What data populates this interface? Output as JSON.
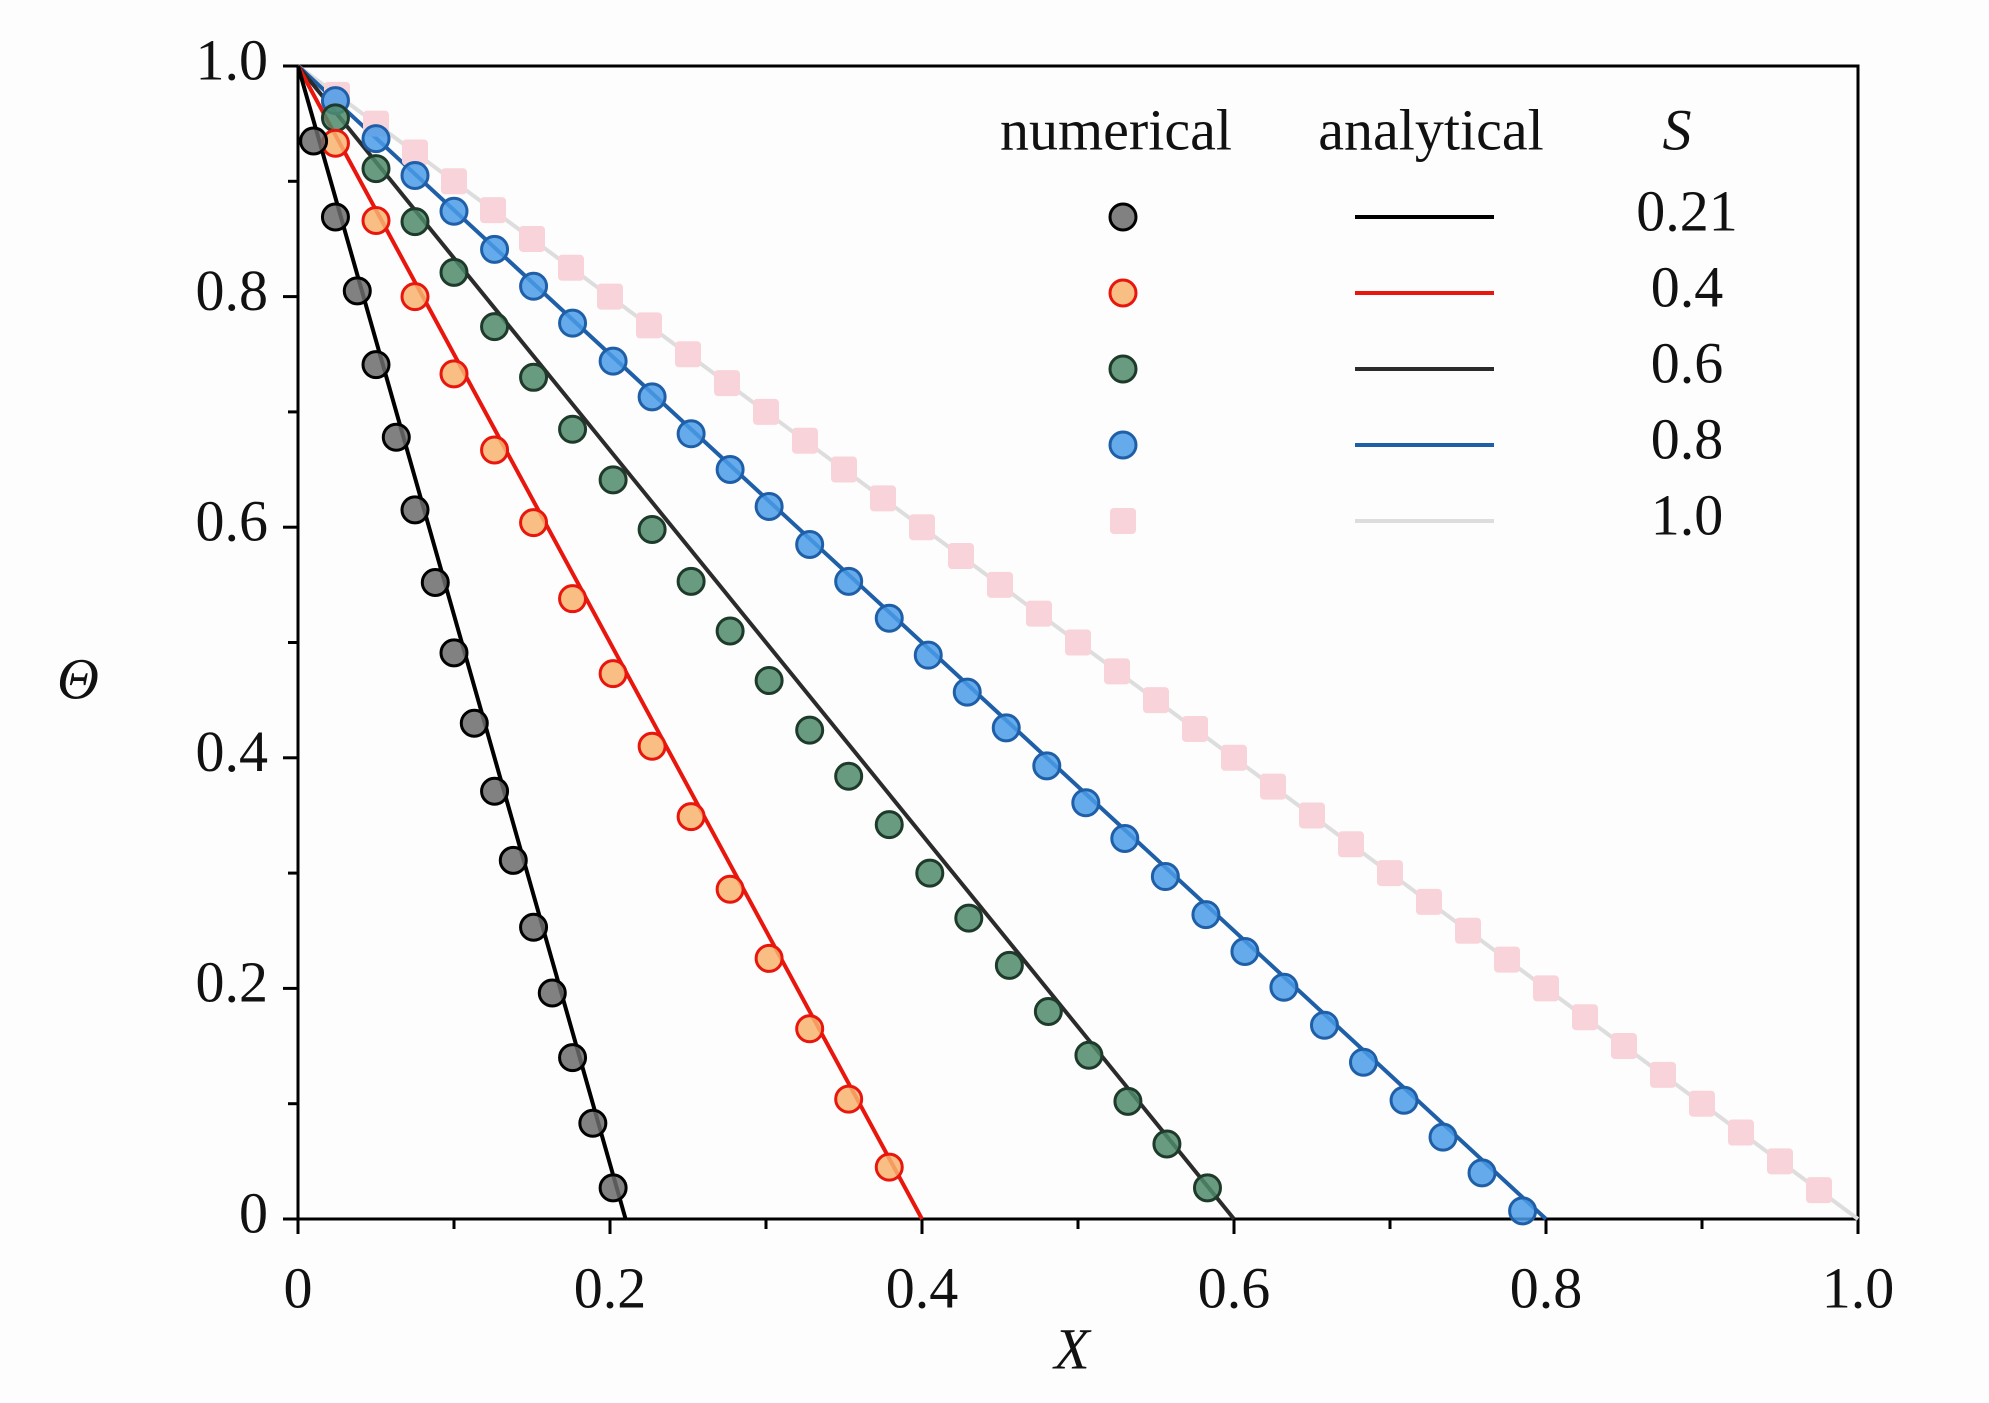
{
  "chart_data": {
    "type": "line",
    "xlabel": "X",
    "ylabel": "Θ",
    "xlim": [
      0,
      1
    ],
    "ylim": [
      0,
      1
    ],
    "xticks": [
      0,
      0.2,
      0.4,
      0.6,
      0.8,
      {
        "value": 1,
        "label": "1.0"
      }
    ],
    "yticks": [
      0,
      0.2,
      0.4,
      0.6,
      0.8,
      {
        "value": 1,
        "label": "1.0"
      }
    ],
    "xminorticks": [
      0.1,
      0.3,
      0.5,
      0.7,
      0.9
    ],
    "yminorticks": [
      0.1,
      0.3,
      0.5,
      0.7,
      0.9
    ],
    "legend_headers": [
      "numerical",
      "analytical",
      "S"
    ],
    "series": [
      {
        "name": "0.21",
        "color": "#000000",
        "marker_fill": "#6b6b6b",
        "marker_edge": "#000000",
        "marker_shape": "circle",
        "x": [
          0,
          0.21
        ],
        "values": [
          1,
          0
        ],
        "numerical_x": [
          0.01,
          0.024,
          0.038,
          0.05,
          0.063,
          0.075,
          0.088,
          0.1,
          0.113,
          0.126,
          0.138,
          0.151,
          0.163,
          0.176,
          0.189,
          0.202
        ],
        "numerical_values": [
          0.935,
          0.869,
          0.805,
          0.741,
          0.678,
          0.615,
          0.552,
          0.491,
          0.43,
          0.371,
          0.311,
          0.253,
          0.196,
          0.14,
          0.083,
          0.027
        ]
      },
      {
        "name": "0.4",
        "color": "#e8160c",
        "marker_fill": "#f7b36e",
        "marker_edge": "#e8160c",
        "marker_shape": "circle",
        "x": [
          0,
          0.4
        ],
        "values": [
          1,
          0
        ],
        "numerical_x": [
          0.024,
          0.05,
          0.075,
          0.1,
          0.126,
          0.151,
          0.176,
          0.202,
          0.227,
          0.252,
          0.277,
          0.302,
          0.328,
          0.353,
          0.379
        ],
        "numerical_values": [
          0.933,
          0.866,
          0.8,
          0.733,
          0.667,
          0.604,
          0.538,
          0.473,
          0.41,
          0.349,
          0.286,
          0.226,
          0.165,
          0.104,
          0.045
        ]
      },
      {
        "name": "0.6",
        "color": "#2b2b2b",
        "marker_fill": "#4e8a6a",
        "marker_edge": "#1e3a2a",
        "marker_shape": "circle",
        "x": [
          0,
          0.6
        ],
        "values": [
          1,
          0
        ],
        "numerical_x": [
          0.024,
          0.05,
          0.075,
          0.1,
          0.126,
          0.151,
          0.176,
          0.202,
          0.227,
          0.252,
          0.277,
          0.302,
          0.328,
          0.353,
          0.379,
          0.405,
          0.43,
          0.456,
          0.481,
          0.507,
          0.532,
          0.557,
          0.583
        ],
        "numerical_values": [
          0.955,
          0.911,
          0.865,
          0.821,
          0.774,
          0.73,
          0.685,
          0.641,
          0.598,
          0.553,
          0.51,
          0.467,
          0.424,
          0.384,
          0.342,
          0.3,
          0.261,
          0.22,
          0.18,
          0.142,
          0.102,
          0.065,
          0.027
        ]
      },
      {
        "name": "0.8",
        "color": "#1f5fa8",
        "marker_fill": "#4a9be8",
        "marker_edge": "#1f5fa8",
        "marker_shape": "circle",
        "x": [
          0,
          0.8
        ],
        "values": [
          1,
          0
        ],
        "numerical_x": [
          0.024,
          0.05,
          0.075,
          0.1,
          0.126,
          0.151,
          0.176,
          0.202,
          0.227,
          0.252,
          0.277,
          0.302,
          0.328,
          0.353,
          0.379,
          0.404,
          0.429,
          0.454,
          0.48,
          0.505,
          0.53,
          0.556,
          0.582,
          0.607,
          0.632,
          0.658,
          0.683,
          0.709,
          0.734,
          0.759,
          0.785
        ],
        "numerical_values": [
          0.97,
          0.937,
          0.905,
          0.874,
          0.841,
          0.809,
          0.777,
          0.744,
          0.713,
          0.681,
          0.65,
          0.618,
          0.585,
          0.553,
          0.521,
          0.489,
          0.457,
          0.426,
          0.393,
          0.361,
          0.33,
          0.297,
          0.264,
          0.232,
          0.201,
          0.168,
          0.136,
          0.103,
          0.071,
          0.04,
          0.007
        ]
      },
      {
        "name": "1.0",
        "color": "#dddddd",
        "marker_fill": "#f9d3da",
        "marker_edge": "none",
        "marker_shape": "square",
        "x": [
          0,
          1
        ],
        "values": [
          1,
          0
        ],
        "numerical_x": [
          0.025,
          0.05,
          0.075,
          0.1,
          0.125,
          0.15,
          0.175,
          0.2,
          0.225,
          0.25,
          0.275,
          0.3,
          0.325,
          0.35,
          0.375,
          0.4,
          0.425,
          0.45,
          0.475,
          0.5,
          0.525,
          0.55,
          0.575,
          0.6,
          0.625,
          0.65,
          0.675,
          0.7,
          0.725,
          0.75,
          0.775,
          0.8,
          0.825,
          0.85,
          0.875,
          0.9,
          0.925,
          0.95,
          0.975
        ],
        "numerical_values": [
          0.975,
          0.95,
          0.925,
          0.9,
          0.875,
          0.85,
          0.825,
          0.8,
          0.775,
          0.75,
          0.725,
          0.7,
          0.675,
          0.65,
          0.625,
          0.6,
          0.575,
          0.55,
          0.525,
          0.5,
          0.475,
          0.45,
          0.425,
          0.4,
          0.375,
          0.35,
          0.325,
          0.3,
          0.275,
          0.25,
          0.225,
          0.2,
          0.175,
          0.15,
          0.125,
          0.1,
          0.075,
          0.05,
          0.025
        ]
      }
    ]
  }
}
